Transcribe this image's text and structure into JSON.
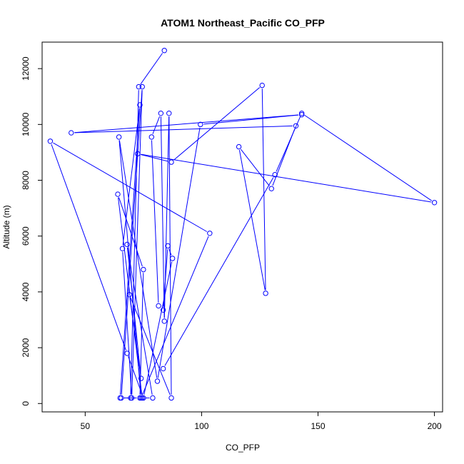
{
  "chart_data": {
    "type": "line",
    "title": "ATOM1 Northeast_Pacific CO_PFP",
    "xlabel": "CO_PFP",
    "ylabel": "Altitude (m)",
    "xlim": [
      31.5,
      203.5
    ],
    "ylim": [
      -300,
      12950
    ],
    "xticks": [
      50,
      100,
      150,
      200
    ],
    "yticks": [
      0,
      2000,
      4000,
      6000,
      8000,
      10000,
      12000
    ],
    "grid": false,
    "legend": "none",
    "line_color": "#0000ff",
    "marker": "open-circle",
    "series": [
      {
        "x": [
          84.0,
          73.0,
          69.5,
          65.5,
          74.5,
          70.0,
          66.0,
          73.5,
          65.0,
          73.5,
          75.0,
          64.0,
          74.5,
          79.0,
          68.0,
          74.0,
          69.0,
          87.0,
          86.0,
          84.0,
          82.5,
          78.5,
          81.5,
          83.5,
          85.5,
          87.5,
          75.0,
          68.0,
          35.0,
          103.5,
          74.0,
          64.5,
          81.0,
          99.5,
          143.0,
          44.0,
          140.5,
          130.0,
          116.0,
          127.5,
          126.0,
          87.0,
          72.5,
          200.0,
          143.0,
          131.5,
          83.5
        ],
        "y": [
          12650,
          11350,
          200,
          200,
          11350,
          200,
          5550,
          10700,
          200,
          200,
          4800,
          7500,
          200,
          200,
          5700,
          900,
          3900,
          200,
          10400,
          2950,
          10400,
          9550,
          3500,
          3350,
          5650,
          5200,
          200,
          1800,
          9400,
          6100,
          200,
          9550,
          800,
          10000,
          10350,
          9700,
          9950,
          7700,
          9200,
          3950,
          11400,
          8650,
          8950,
          7200,
          10400,
          8200,
          1250
        ]
      }
    ]
  }
}
